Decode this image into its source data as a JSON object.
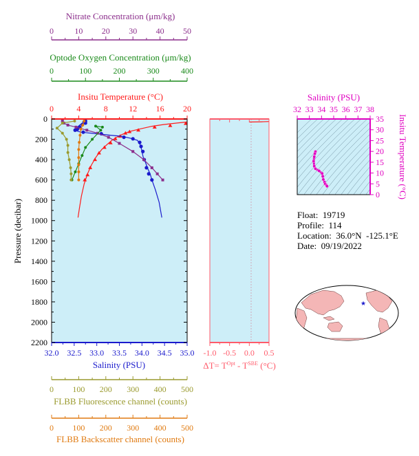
{
  "colors": {
    "nitrate": "#8b2d8b",
    "oxygen": "#1a8a1a",
    "temperature": "#ff1a1a",
    "salinity": "#1a1acc",
    "fluorescence": "#9a9a2e",
    "backscatter": "#e07a10",
    "magenta": "#e000c0",
    "dt_axis": "#ff5a6a",
    "plot_bg": "#cdeef8",
    "land": "#f4b6b6",
    "ocean": "#ffffff"
  },
  "float_info": {
    "float": "Float:  19719",
    "profile": "Profile:  114",
    "location": "Location:  36.0°N  -125.1°E",
    "date": "Date:  09/19/2022"
  },
  "chart_data": [
    {
      "type": "line",
      "title": "",
      "ylabel": "Pressure (decibar)",
      "ylim": [
        2200,
        0
      ],
      "y_ticks": [
        "0",
        "200",
        "400",
        "600",
        "800",
        "1000",
        "1200",
        "1400",
        "1600",
        "1800",
        "2000",
        "2200"
      ],
      "axes": {
        "nitrate": {
          "label": "Nitrate Concentration (μm/kg)",
          "range": [
            0,
            50
          ],
          "ticks": [
            "0",
            "10",
            "20",
            "30",
            "40",
            "50"
          ]
        },
        "oxygen": {
          "label": "Optode Oxygen Concentration (μm/kg)",
          "range": [
            0,
            400
          ],
          "ticks": [
            "0",
            "100",
            "200",
            "300",
            "400"
          ]
        },
        "temperature": {
          "label": "Insitu Temperature (°C)",
          "range": [
            0,
            20
          ],
          "ticks": [
            "0",
            "4",
            "8",
            "12",
            "16",
            "20"
          ]
        },
        "salinity": {
          "label": "Salinity (PSU)",
          "range": [
            32.0,
            35.0
          ],
          "ticks": [
            "32.0",
            "32.5",
            "33.0",
            "33.5",
            "34.0",
            "34.5",
            "35.0"
          ]
        },
        "fluorescence": {
          "label": "FLBB Fluorescence channel (counts)",
          "range": [
            0,
            500
          ],
          "ticks": [
            "0",
            "100",
            "200",
            "300",
            "400",
            "500"
          ]
        },
        "backscatter": {
          "label": "FLBB Backscatter channel (counts)",
          "range": [
            0,
            500
          ],
          "ticks": [
            "0",
            "100",
            "200",
            "300",
            "400",
            "500"
          ]
        }
      },
      "series": [
        {
          "key": "temperature",
          "line_only": [
            [
              20.0,
              30
            ],
            [
              18.5,
              40
            ],
            [
              16.5,
              55
            ],
            [
              14.8,
              72
            ],
            [
              12.9,
              100
            ],
            [
              11.8,
              118
            ],
            [
              11.0,
              135
            ],
            [
              10.3,
              155
            ],
            [
              9.6,
              180
            ],
            [
              8.9,
              210
            ],
            [
              8.2,
              250
            ],
            [
              7.4,
              300
            ],
            [
              6.6,
              370
            ],
            [
              5.9,
              450
            ],
            [
              5.3,
              540
            ],
            [
              4.8,
              640
            ],
            [
              4.4,
              760
            ],
            [
              4.1,
              880
            ],
            [
              3.9,
              970
            ]
          ],
          "markers": [
            [
              19.8,
              45
            ],
            [
              17.5,
              65
            ],
            [
              15.2,
              80
            ],
            [
              12.8,
              110
            ],
            [
              11.5,
              125
            ],
            [
              10.9,
              140
            ],
            [
              10.1,
              170
            ],
            [
              9.4,
              195
            ],
            [
              8.7,
              235
            ],
            [
              7.8,
              280
            ],
            [
              7.0,
              335
            ],
            [
              6.4,
              400
            ],
            [
              5.7,
              480
            ],
            [
              5.3,
              550
            ],
            [
              4.9,
              600
            ]
          ]
        },
        {
          "key": "salinity",
          "line_only": [
            [
              32.75,
              20
            ],
            [
              32.7,
              40
            ],
            [
              32.62,
              60
            ],
            [
              32.55,
              90
            ],
            [
              32.5,
              110
            ],
            [
              32.65,
              130
            ],
            [
              33.0,
              145
            ],
            [
              33.3,
              160
            ],
            [
              33.55,
              170
            ],
            [
              33.75,
              190
            ],
            [
              33.9,
              210
            ],
            [
              33.97,
              260
            ],
            [
              34.0,
              320
            ],
            [
              34.03,
              380
            ],
            [
              34.08,
              430
            ],
            [
              34.12,
              480
            ],
            [
              34.18,
              540
            ],
            [
              34.22,
              600
            ],
            [
              34.3,
              700
            ],
            [
              34.38,
              820
            ],
            [
              34.44,
              970
            ]
          ],
          "markers": [
            [
              32.75,
              20
            ],
            [
              32.72,
              30
            ],
            [
              32.75,
              40
            ],
            [
              32.68,
              55
            ],
            [
              32.62,
              80
            ],
            [
              32.57,
              100
            ],
            [
              32.52,
              110
            ],
            [
              32.7,
              130
            ],
            [
              33.1,
              145
            ],
            [
              33.6,
              180
            ],
            [
              33.8,
              195
            ],
            [
              33.95,
              230
            ],
            [
              33.98,
              270
            ],
            [
              34.02,
              320
            ],
            [
              34.05,
              400
            ],
            [
              34.1,
              480
            ],
            [
              34.15,
              540
            ],
            [
              34.22,
              600
            ]
          ]
        },
        {
          "key": "nitrate",
          "values": [
            [
              4,
              20
            ],
            [
              4.5,
              40
            ],
            [
              6,
              60
            ],
            [
              9,
              80
            ],
            [
              13,
              110
            ],
            [
              17,
              140
            ],
            [
              21,
              180
            ],
            [
              25,
              240
            ],
            [
              30,
              320
            ],
            [
              34,
              400
            ],
            [
              37,
              480
            ],
            [
              39,
              540
            ],
            [
              41,
              600
            ]
          ]
        },
        {
          "key": "oxygen",
          "values": [
            [
              150,
              80
            ],
            [
              130,
              70
            ],
            [
              145,
              110
            ],
            [
              120,
              200
            ],
            [
              100,
              280
            ],
            [
              90,
              360
            ],
            [
              80,
              440
            ],
            [
              70,
              520
            ],
            [
              60,
              600
            ]
          ]
        },
        {
          "key": "fluorescence",
          "values": [
            [
              85,
              20
            ],
            [
              40,
              40
            ],
            [
              20,
              90
            ],
            [
              40,
              140
            ],
            [
              55,
              200
            ],
            [
              60,
              260
            ],
            [
              60,
              330
            ],
            [
              65,
              400
            ],
            [
              70,
              480
            ],
            [
              72,
              540
            ],
            [
              72,
              600
            ]
          ]
        },
        {
          "key": "backscatter",
          "values": [
            [
              120,
              20
            ],
            [
              115,
              60
            ],
            [
              108,
              100
            ],
            [
              105,
              160
            ],
            [
              102,
              230
            ],
            [
              100,
              300
            ],
            [
              100,
              380
            ],
            [
              100,
              450
            ],
            [
              100,
              520
            ],
            [
              100,
              600
            ]
          ]
        }
      ]
    },
    {
      "type": "line",
      "title": "",
      "xlabel": "ΔT= T^Opt - T^SBE (°C)",
      "xlabel_parts": {
        "prefix": "ΔT= T",
        "sup1": "Opt",
        "mid": " - T",
        "sup2": "SBE",
        "suffix": " (°C)"
      },
      "xlim": [
        -1.0,
        0.5
      ],
      "x_ticks": [
        "-1.0",
        "-0.5",
        "0.0",
        "0.5"
      ],
      "values": [
        [
          0.5,
          25
        ],
        [
          0.3,
          28
        ],
        [
          0.0,
          30
        ]
      ]
    },
    {
      "type": "scatter",
      "title": "",
      "xlabel": "Salinity (PSU)",
      "ylabel": "Insitu Temperature (°C)",
      "xlim": [
        32,
        38
      ],
      "ylim": [
        0,
        35
      ],
      "x_ticks": [
        "32",
        "33",
        "34",
        "35",
        "36",
        "37",
        "38"
      ],
      "y_ticks": [
        "0",
        "5",
        "10",
        "15",
        "20",
        "25",
        "30",
        "35"
      ],
      "values": [
        [
          33.5,
          19.9
        ],
        [
          33.45,
          19.0
        ],
        [
          33.4,
          17.5
        ],
        [
          33.35,
          15.5
        ],
        [
          33.4,
          13.2
        ],
        [
          33.5,
          12.0
        ],
        [
          33.8,
          11.0
        ],
        [
          34.05,
          9.8
        ],
        [
          34.1,
          8.5
        ],
        [
          34.15,
          7.0
        ],
        [
          34.25,
          5.8
        ],
        [
          34.3,
          5.0
        ],
        [
          34.4,
          4.4
        ],
        [
          34.45,
          3.9
        ]
      ]
    }
  ]
}
